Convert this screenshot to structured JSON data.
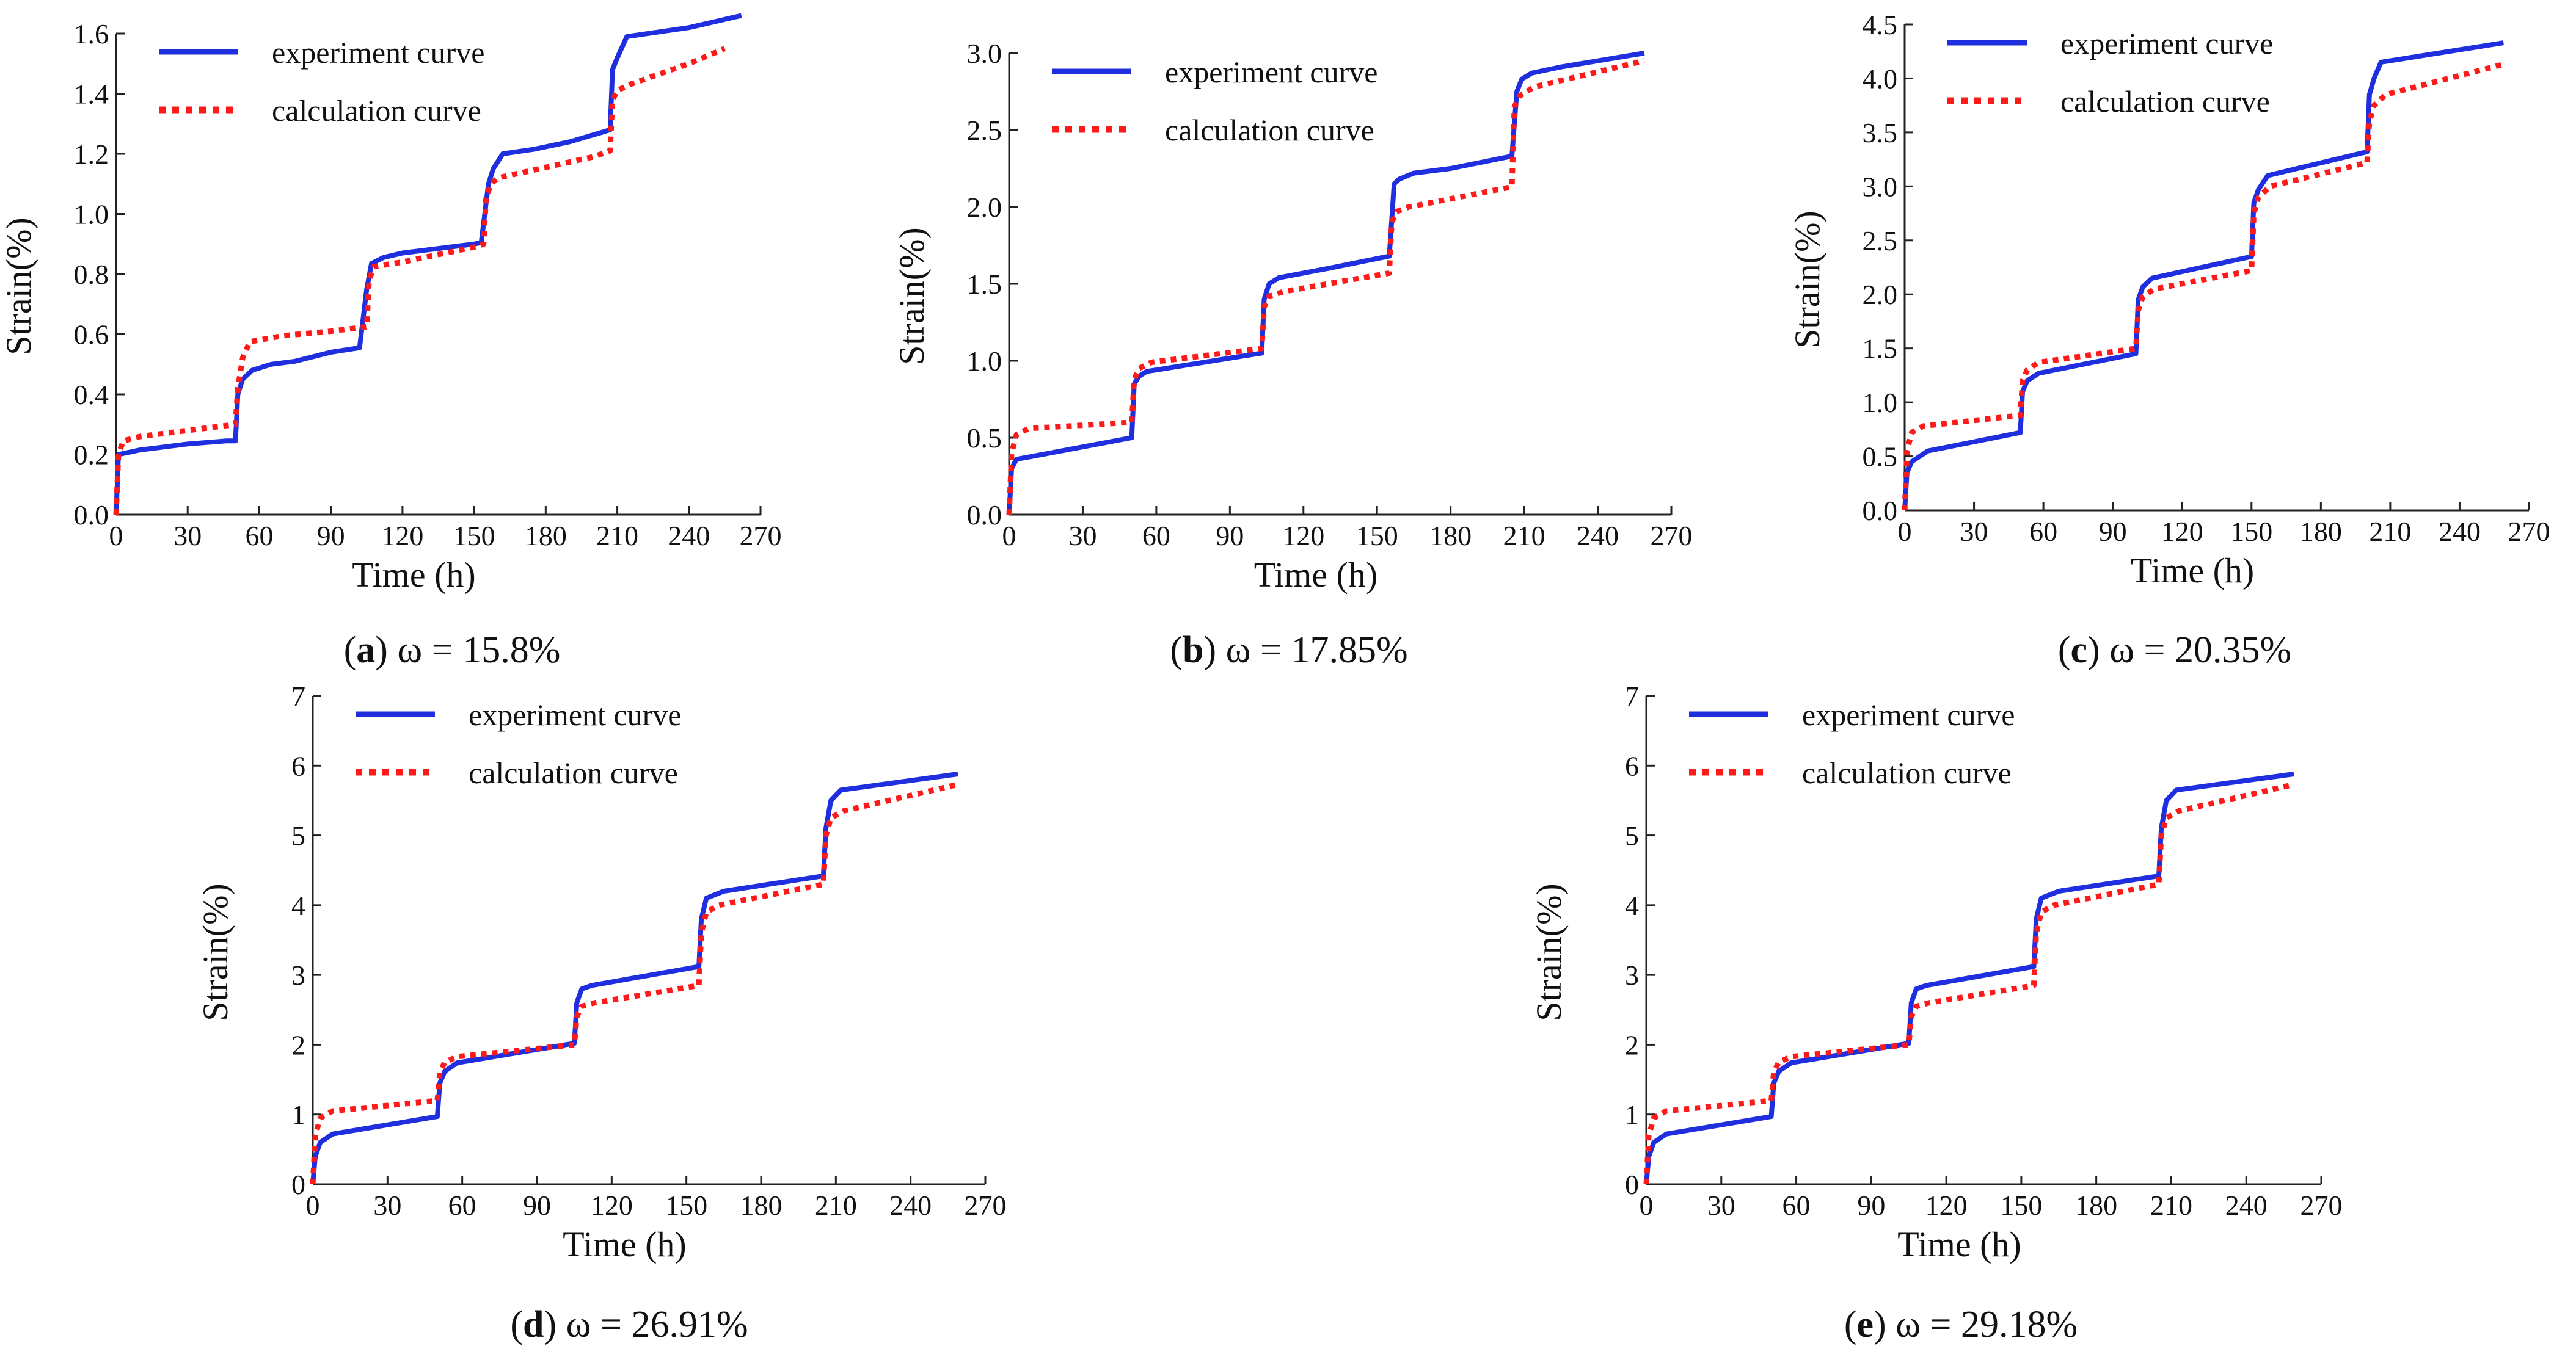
{
  "chart_data": [
    {
      "type": "line",
      "xlabel": "Time (h)",
      "ylabel": "Strain(%)",
      "xlim": [
        0,
        270
      ],
      "ylim": [
        0,
        1.6
      ],
      "xticks": [
        "0",
        "30",
        "60",
        "90",
        "120",
        "150",
        "180",
        "210",
        "240",
        "270"
      ],
      "yticks": [
        "0.0",
        "0.2",
        "0.4",
        "0.6",
        "0.8",
        "1.0",
        "1.2",
        "1.4",
        "1.6"
      ],
      "legend": [
        "experiment curve",
        "calculation curve"
      ],
      "legend_position": "top-left",
      "caption_label": "a",
      "caption_text": "ω = 15.8%",
      "series": [
        {
          "name": "experiment curve",
          "color": "#1f2fe0",
          "style": "solid",
          "x": [
            0,
            1,
            10,
            30,
            46,
            50,
            51,
            53,
            57,
            65,
            75,
            90,
            102,
            105,
            107,
            112,
            120,
            150,
            153,
            156,
            158,
            162,
            175,
            190,
            205,
            207,
            208,
            210,
            214,
            240,
            262
          ],
          "y": [
            0,
            0.2,
            0.215,
            0.235,
            0.245,
            0.245,
            0.4,
            0.45,
            0.48,
            0.5,
            0.51,
            0.54,
            0.555,
            0.75,
            0.835,
            0.855,
            0.87,
            0.9,
            0.905,
            1.1,
            1.15,
            1.2,
            1.215,
            1.24,
            1.275,
            1.28,
            1.48,
            1.52,
            1.59,
            1.62,
            1.66
          ]
        },
        {
          "name": "calculation curve",
          "color": "#ff1a1a",
          "style": "dotted",
          "x": [
            0,
            1,
            3,
            10,
            30,
            50,
            51,
            53,
            56,
            70,
            90,
            105,
            106,
            108,
            120,
            150,
            154,
            155,
            157,
            160,
            180,
            200,
            207,
            208,
            210,
            215,
            240,
            255
          ],
          "y": [
            0,
            0.2,
            0.245,
            0.26,
            0.28,
            0.3,
            0.42,
            0.52,
            0.575,
            0.595,
            0.61,
            0.625,
            0.78,
            0.825,
            0.84,
            0.89,
            0.9,
            1.05,
            1.1,
            1.12,
            1.155,
            1.19,
            1.21,
            1.38,
            1.41,
            1.43,
            1.5,
            1.55
          ]
        }
      ]
    },
    {
      "type": "line",
      "xlabel": "Time (h)",
      "ylabel": "Strain(%)",
      "xlim": [
        0,
        270
      ],
      "ylim": [
        0,
        3.0
      ],
      "xticks": [
        "0",
        "30",
        "60",
        "90",
        "120",
        "150",
        "180",
        "210",
        "240",
        "270"
      ],
      "yticks": [
        "0.0",
        "0.5",
        "1.0",
        "1.5",
        "2.0",
        "2.5",
        "3.0"
      ],
      "legend": [
        "experiment curve",
        "calculation curve"
      ],
      "legend_position": "top-left",
      "caption_label": "b",
      "caption_text": "ω = 17.85%",
      "series": [
        {
          "name": "experiment curve",
          "color": "#1f2fe0",
          "style": "solid",
          "x": [
            0,
            1,
            3,
            10,
            50,
            51,
            53,
            56,
            103,
            104,
            106,
            110,
            130,
            155,
            157,
            159,
            165,
            180,
            205,
            207,
            209,
            213,
            225,
            259
          ],
          "y": [
            0,
            0.3,
            0.36,
            0.38,
            0.5,
            0.85,
            0.9,
            0.93,
            1.05,
            1.4,
            1.5,
            1.54,
            1.6,
            1.68,
            2.15,
            2.18,
            2.22,
            2.25,
            2.33,
            2.75,
            2.83,
            2.87,
            2.91,
            3.0
          ]
        },
        {
          "name": "calculation curve",
          "color": "#ff1a1a",
          "style": "dotted",
          "x": [
            0,
            1,
            3,
            8,
            50,
            51,
            53,
            58,
            103,
            104,
            106,
            112,
            155,
            156,
            158,
            163,
            205,
            206,
            208,
            214,
            259
          ],
          "y": [
            0,
            0.4,
            0.52,
            0.56,
            0.6,
            0.88,
            0.95,
            0.99,
            1.08,
            1.35,
            1.42,
            1.45,
            1.57,
            1.9,
            1.97,
            2.0,
            2.13,
            2.65,
            2.72,
            2.78,
            2.95
          ]
        }
      ]
    },
    {
      "type": "line",
      "xlabel": "Time (h)",
      "ylabel": "Strain(%)",
      "xlim": [
        0,
        270
      ],
      "ylim": [
        0,
        4.5
      ],
      "xticks": [
        "0",
        "30",
        "60",
        "90",
        "120",
        "150",
        "180",
        "210",
        "240",
        "270"
      ],
      "yticks": [
        "0.0",
        "0.5",
        "1.0",
        "1.5",
        "2.0",
        "2.5",
        "3.0",
        "3.5",
        "4.0",
        "4.5"
      ],
      "legend": [
        "experiment curve",
        "calculation curve"
      ],
      "legend_position": "top-left",
      "caption_label": "c",
      "caption_text": "ω = 20.35%",
      "series": [
        {
          "name": "experiment curve",
          "color": "#1f2fe0",
          "style": "solid",
          "x": [
            0,
            1,
            3,
            10,
            50,
            51,
            53,
            58,
            100,
            101,
            103,
            107,
            150,
            151,
            153,
            157,
            200,
            201,
            203,
            206,
            259
          ],
          "y": [
            0,
            0.35,
            0.45,
            0.55,
            0.72,
            1.1,
            1.2,
            1.27,
            1.45,
            1.95,
            2.07,
            2.15,
            2.35,
            2.85,
            2.97,
            3.1,
            3.32,
            3.85,
            4.0,
            4.15,
            4.33
          ]
        },
        {
          "name": "calculation curve",
          "color": "#ff1a1a",
          "style": "dotted",
          "x": [
            0,
            1,
            3,
            8,
            50,
            51,
            53,
            58,
            100,
            101,
            103,
            108,
            150,
            151,
            153,
            158,
            200,
            201,
            203,
            208,
            259
          ],
          "y": [
            0,
            0.55,
            0.72,
            0.78,
            0.88,
            1.2,
            1.3,
            1.37,
            1.5,
            1.85,
            1.98,
            2.05,
            2.22,
            2.75,
            2.9,
            3.0,
            3.22,
            3.6,
            3.75,
            3.85,
            4.13
          ]
        }
      ]
    },
    {
      "type": "line",
      "xlabel": "Time (h)",
      "ylabel": "Strain(%)",
      "xlim": [
        0,
        270
      ],
      "ylim": [
        0,
        7
      ],
      "xticks": [
        "0",
        "30",
        "60",
        "90",
        "120",
        "150",
        "180",
        "210",
        "240",
        "270"
      ],
      "yticks": [
        "0",
        "1",
        "2",
        "3",
        "4",
        "5",
        "6",
        "7"
      ],
      "legend": [
        "experiment curve",
        "calculation curve"
      ],
      "legend_position": "top-left",
      "caption_label": "d",
      "caption_text": "ω = 26.91%",
      "series": [
        {
          "name": "experiment curve",
          "color": "#1f2fe0",
          "style": "solid",
          "x": [
            0,
            1,
            3,
            8,
            50,
            51,
            53,
            58,
            105,
            106,
            108,
            112,
            155,
            156,
            158,
            165,
            205,
            206,
            208,
            212,
            259
          ],
          "y": [
            0,
            0.4,
            0.6,
            0.72,
            0.97,
            1.45,
            1.62,
            1.74,
            2.02,
            2.6,
            2.8,
            2.85,
            3.12,
            3.8,
            4.1,
            4.2,
            4.42,
            5.1,
            5.5,
            5.65,
            5.88
          ]
        },
        {
          "name": "calculation curve",
          "color": "#ff1a1a",
          "style": "dotted",
          "x": [
            0,
            1,
            3,
            8,
            50,
            51,
            53,
            58,
            105,
            106,
            108,
            113,
            155,
            156,
            158,
            163,
            205,
            206,
            208,
            213,
            259
          ],
          "y": [
            0,
            0.7,
            0.95,
            1.05,
            1.2,
            1.6,
            1.75,
            1.83,
            2.0,
            2.4,
            2.55,
            2.6,
            2.85,
            3.6,
            3.9,
            4.0,
            4.3,
            5.0,
            5.25,
            5.35,
            5.73
          ]
        }
      ]
    },
    {
      "type": "line",
      "xlabel": "Time (h)",
      "ylabel": "Strain(%)",
      "xlim": [
        0,
        270
      ],
      "ylim": [
        0,
        7
      ],
      "xticks": [
        "0",
        "30",
        "60",
        "90",
        "120",
        "150",
        "180",
        "210",
        "240",
        "270"
      ],
      "yticks": [
        "0",
        "1",
        "2",
        "3",
        "4",
        "5",
        "6",
        "7"
      ],
      "legend": [
        "experiment curve",
        "calculation curve"
      ],
      "legend_position": "top-left",
      "caption_label": "e",
      "caption_text": "ω = 29.18%",
      "series": [
        {
          "name": "experiment curve",
          "color": "#1f2fe0",
          "style": "solid",
          "x": [
            0,
            1,
            3,
            8,
            50,
            51,
            53,
            58,
            105,
            106,
            108,
            112,
            155,
            156,
            158,
            165,
            205,
            206,
            208,
            212,
            259
          ],
          "y": [
            0,
            0.4,
            0.6,
            0.72,
            0.97,
            1.45,
            1.62,
            1.74,
            2.02,
            2.6,
            2.8,
            2.85,
            3.12,
            3.8,
            4.1,
            4.2,
            4.42,
            5.1,
            5.5,
            5.65,
            5.88
          ]
        },
        {
          "name": "calculation curve",
          "color": "#ff1a1a",
          "style": "dotted",
          "x": [
            0,
            1,
            3,
            8,
            50,
            51,
            53,
            58,
            105,
            106,
            108,
            113,
            155,
            156,
            158,
            163,
            205,
            206,
            208,
            213,
            259
          ],
          "y": [
            0,
            0.7,
            0.95,
            1.05,
            1.2,
            1.6,
            1.75,
            1.83,
            2.0,
            2.4,
            2.55,
            2.6,
            2.85,
            3.6,
            3.9,
            4.0,
            4.3,
            5.0,
            5.25,
            5.35,
            5.73
          ]
        }
      ]
    }
  ]
}
